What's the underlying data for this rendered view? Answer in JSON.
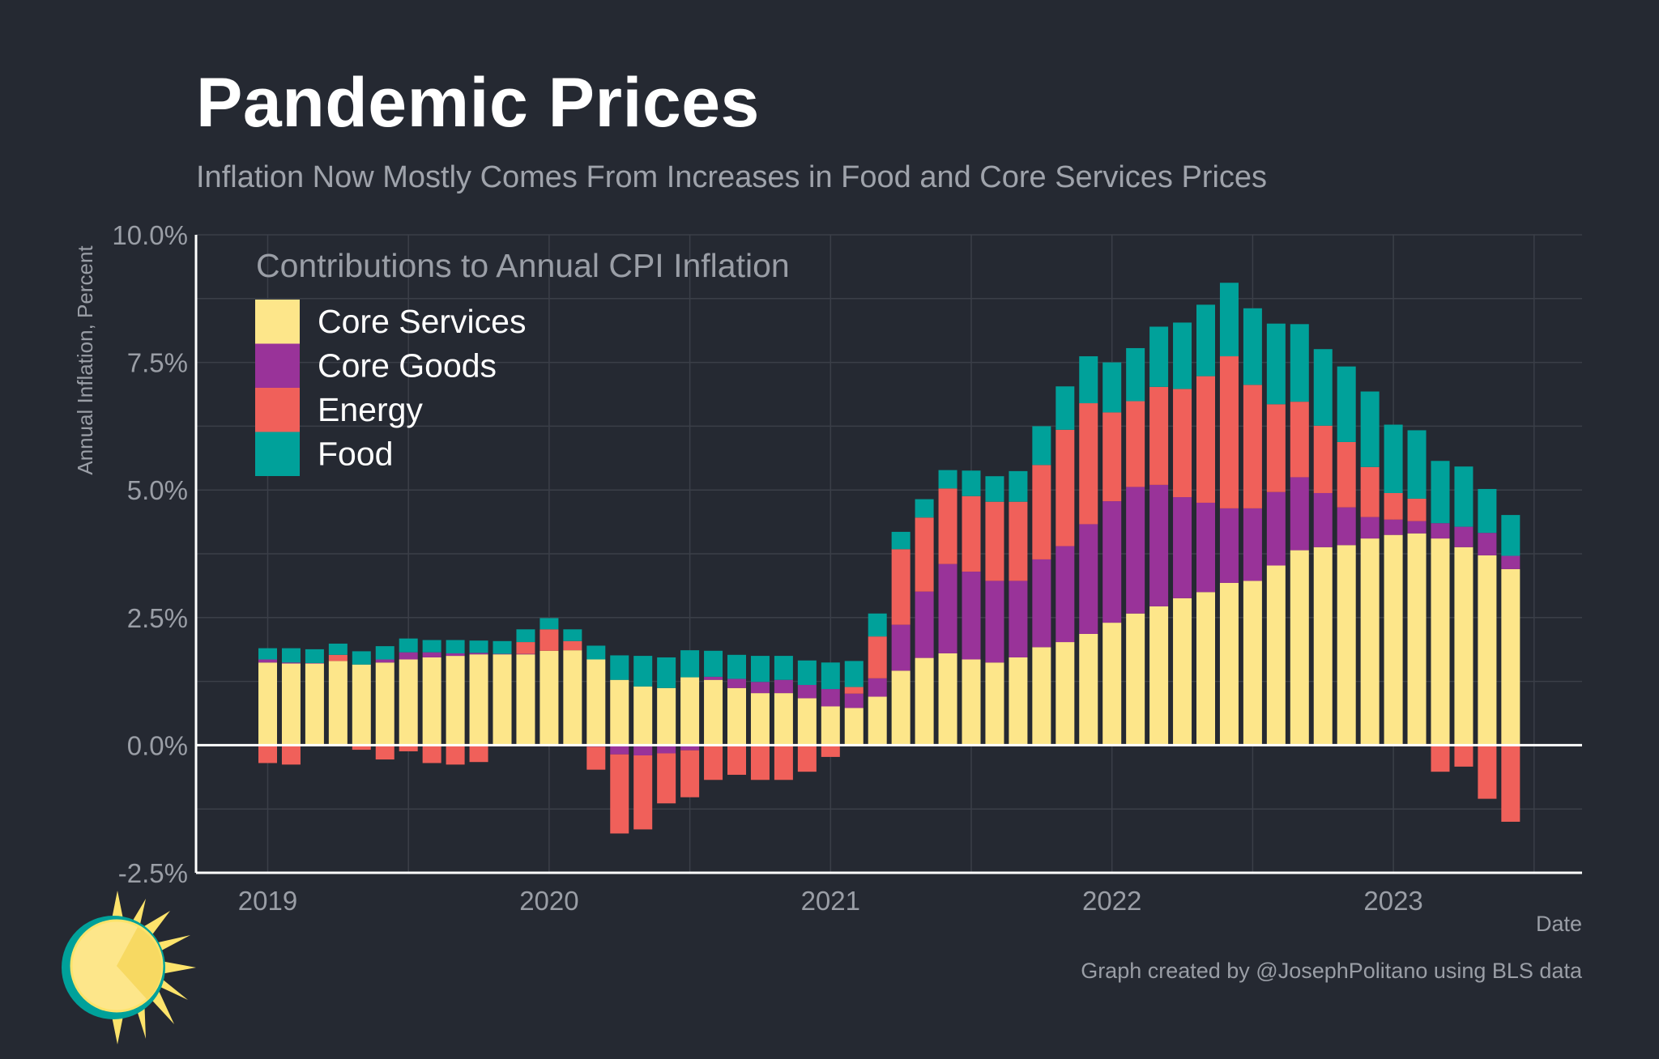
{
  "header": {
    "title": "Pandemic Prices",
    "subtitle": "Inflation Now Mostly Comes From Increases in Food and Core Services Prices"
  },
  "footer": {
    "credit": "Graph created by @JosephPolitano using BLS data"
  },
  "logo": {
    "icon": "sun-logo-icon"
  },
  "colors": {
    "background": "#252932",
    "grid": "#3b3f48",
    "axis_text": "#9a9ea6",
    "core_services": "#fde68a",
    "core_goods": "#993399",
    "energy": "#f0605a",
    "food": "#00a19a"
  },
  "chart_data": {
    "type": "bar",
    "stacked": true,
    "title": "Contributions to Annual CPI Inflation",
    "xlabel": "Date",
    "ylabel": "Annual Inflation, Percent",
    "ylim": [
      -2.5,
      10.0
    ],
    "yticks": [
      -2.5,
      0.0,
      2.5,
      5.0,
      7.5,
      10.0
    ],
    "ytick_labels": [
      "-2.5%",
      "0.0%",
      "2.5%",
      "5.0%",
      "7.5%",
      "10.0%"
    ],
    "xticks": [
      "2019",
      "2020",
      "2021",
      "2022",
      "2023"
    ],
    "legend_position": "top-left",
    "start": "2019-01",
    "categories": [
      "2019-01",
      "2019-02",
      "2019-03",
      "2019-04",
      "2019-05",
      "2019-06",
      "2019-07",
      "2019-08",
      "2019-09",
      "2019-10",
      "2019-11",
      "2019-12",
      "2020-01",
      "2020-02",
      "2020-03",
      "2020-04",
      "2020-05",
      "2020-06",
      "2020-07",
      "2020-08",
      "2020-09",
      "2020-10",
      "2020-11",
      "2020-12",
      "2021-01",
      "2021-02",
      "2021-03",
      "2021-04",
      "2021-05",
      "2021-06",
      "2021-07",
      "2021-08",
      "2021-09",
      "2021-10",
      "2021-11",
      "2021-12",
      "2022-01",
      "2022-02",
      "2022-03",
      "2022-04",
      "2022-05",
      "2022-06",
      "2022-07",
      "2022-08",
      "2022-09",
      "2022-10",
      "2022-11",
      "2022-12",
      "2023-01",
      "2023-02",
      "2023-03",
      "2023-04",
      "2023-05",
      "2023-06"
    ],
    "series": [
      {
        "name": "Core Services",
        "key": "core_services",
        "values": [
          1.62,
          1.6,
          1.6,
          1.65,
          1.58,
          1.62,
          1.68,
          1.72,
          1.75,
          1.78,
          1.78,
          1.78,
          1.85,
          1.86,
          1.68,
          1.28,
          1.15,
          1.12,
          1.33,
          1.28,
          1.12,
          1.02,
          1.02,
          0.92,
          0.76,
          0.73,
          0.95,
          1.46,
          1.71,
          1.8,
          1.68,
          1.62,
          1.72,
          1.92,
          2.02,
          2.18,
          2.4,
          2.58,
          2.72,
          2.88,
          3.0,
          3.18,
          3.22,
          3.52,
          3.82,
          3.88,
          3.92,
          4.05,
          4.12,
          4.15,
          4.05,
          3.88,
          3.72,
          3.45
        ]
      },
      {
        "name": "Core Goods",
        "key": "core_goods",
        "values": [
          0.06,
          0.02,
          0.01,
          -0.01,
          -0.01,
          0.06,
          0.14,
          0.1,
          0.05,
          0.03,
          0.01,
          0.01,
          -0.01,
          -0.02,
          -0.03,
          -0.18,
          -0.2,
          -0.16,
          -0.1,
          0.06,
          0.18,
          0.22,
          0.26,
          0.26,
          0.34,
          0.28,
          0.36,
          0.9,
          1.3,
          1.75,
          1.72,
          1.6,
          1.5,
          1.72,
          1.88,
          2.15,
          2.38,
          2.48,
          2.38,
          1.98,
          1.75,
          1.46,
          1.42,
          1.44,
          1.43,
          1.06,
          0.74,
          0.42,
          0.3,
          0.24,
          0.3,
          0.4,
          0.44,
          0.26
        ]
      },
      {
        "name": "Energy",
        "key": "energy",
        "values": [
          -0.35,
          -0.38,
          -0.01,
          0.12,
          -0.08,
          -0.28,
          -0.12,
          -0.35,
          -0.38,
          -0.33,
          -0.02,
          0.23,
          0.42,
          0.18,
          -0.45,
          -1.55,
          -1.45,
          -0.98,
          -0.92,
          -0.68,
          -0.58,
          -0.68,
          -0.68,
          -0.52,
          -0.23,
          0.13,
          0.82,
          1.48,
          1.45,
          1.48,
          1.48,
          1.55,
          1.55,
          1.85,
          2.28,
          2.37,
          1.74,
          1.68,
          1.92,
          2.12,
          2.48,
          2.98,
          2.42,
          1.72,
          1.48,
          1.32,
          1.28,
          0.98,
          0.52,
          0.44,
          -0.52,
          -0.42,
          -1.05,
          -1.5
        ]
      },
      {
        "name": "Food",
        "key": "food",
        "values": [
          0.22,
          0.28,
          0.27,
          0.22,
          0.26,
          0.26,
          0.27,
          0.24,
          0.26,
          0.24,
          0.25,
          0.25,
          0.22,
          0.23,
          0.27,
          0.48,
          0.6,
          0.6,
          0.53,
          0.51,
          0.47,
          0.51,
          0.47,
          0.48,
          0.52,
          0.51,
          0.45,
          0.34,
          0.36,
          0.36,
          0.5,
          0.5,
          0.6,
          0.76,
          0.85,
          0.92,
          0.98,
          1.04,
          1.18,
          1.3,
          1.4,
          1.44,
          1.5,
          1.58,
          1.52,
          1.5,
          1.48,
          1.48,
          1.34,
          1.34,
          1.22,
          1.18,
          0.86,
          0.8
        ]
      }
    ]
  }
}
